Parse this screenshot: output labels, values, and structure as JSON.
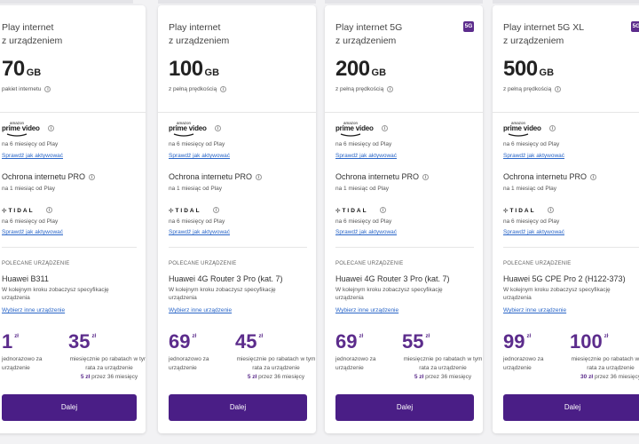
{
  "colors": {
    "accent": "#5c2c8c",
    "button": "#4a1e86",
    "link": "#2a66c8"
  },
  "common": {
    "prime_amazon": "amazon",
    "prime_logo": "prime video",
    "prime_desc": "na 6 miesięcy od Play",
    "prime_link": "Sprawdź jak aktywować",
    "ochrona_title": "Ochrona internetu PRO",
    "ochrona_desc": "na 1 miesiąc od Play",
    "tidal_logo": "TIDAL",
    "tidal_desc": "na 6 miesięcy od Play",
    "tidal_link": "Sprawdź jak aktywować",
    "recommended_label": "POLECANE URZĄDZENIE",
    "device_desc": "W kolejnym kroku zobaczysz specyfikację urządzenia",
    "device_link": "Wybierz inne urządzenie",
    "zl": "zł",
    "one_time_desc": "jednorazowo za urządzenie",
    "monthly_desc": "miesięcznie po rabatach w tym rata za urządzenie",
    "months_suffix": "przez 36 miesięcy",
    "button_label": "Dalej",
    "info": "i",
    "badge_5g": "5G"
  },
  "plans": [
    {
      "name_line1": "Play internet",
      "name_line2": "z urządzeniem",
      "data_value": "70",
      "data_unit": "GB",
      "data_desc": "pakiet internetu",
      "device": "Huawei B311",
      "one_time": "1",
      "monthly": "35",
      "installment": "5 zł"
    },
    {
      "name_line1": "Play internet",
      "name_line2": "z urządzeniem",
      "data_value": "100",
      "data_unit": "GB",
      "data_desc": "z pełną prędkością",
      "device": "Huawei 4G Router 3 Pro (kat. 7)",
      "one_time": "69",
      "monthly": "45",
      "installment": "5 zł"
    },
    {
      "name_line1": "Play internet 5G",
      "name_line2": "z urządzeniem",
      "data_value": "200",
      "data_unit": "GB",
      "data_desc": "z pełną prędkością",
      "device": "Huawei 4G Router 3 Pro (kat. 7)",
      "one_time": "69",
      "monthly": "55",
      "installment": "5 zł"
    },
    {
      "name_line1": "Play internet 5G XL",
      "name_line2": "z urządzeniem",
      "data_value": "500",
      "data_unit": "GB",
      "data_desc": "z pełną prędkością",
      "device": "Huawei 5G CPE Pro 2 (H122-373)",
      "one_time": "99",
      "monthly": "100",
      "installment": "30 zł"
    }
  ]
}
